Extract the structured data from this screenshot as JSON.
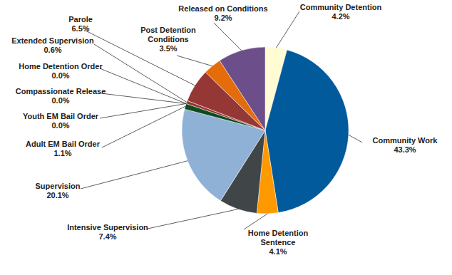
{
  "chart_data": {
    "type": "pie",
    "categories": [
      "Community Detention",
      "Community Work",
      "Home Detention Sentence",
      "Intensive Supervision",
      "Supervision",
      "Adult EM Bail Order",
      "Youth EM Bail Order",
      "Compassionate Release",
      "Home Detention Order",
      "Extended Supervision",
      "Parole",
      "Post Detention Conditions",
      "Released on Conditions"
    ],
    "values": [
      4.2,
      43.3,
      4.1,
      7.4,
      20.1,
      1.1,
      0.0,
      0.0,
      0.0,
      0.6,
      6.5,
      3.5,
      9.2
    ],
    "value_labels": [
      "4.2%",
      "43.3%",
      "4.1%",
      "7.4%",
      "20.1%",
      "1.1%",
      "0.0%",
      "0.0%",
      "0.0%",
      "0.6%",
      "6.5%",
      "3.5%",
      "9.2%"
    ],
    "colors": [
      "#FFFBD2",
      "#005A9C",
      "#FF9900",
      "#404548",
      "#8FB1D6",
      "#0B4D1E",
      "#1F3864",
      "#7F7F7F",
      "#BFBFBF",
      "#943634",
      "#953735",
      "#E46C0A",
      "#6B4E8A"
    ],
    "data_labels": true
  }
}
